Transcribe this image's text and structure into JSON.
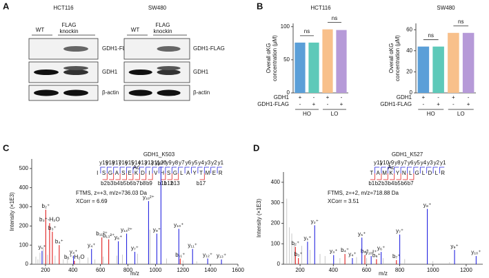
{
  "panel_labels": [
    "A",
    "B",
    "C",
    "D"
  ],
  "blots": [
    {
      "title": "HCT116",
      "lanes": [
        "WT",
        "FLAG",
        "knockin"
      ],
      "rows": [
        "GDH1-FLAG",
        "GDH1",
        "β-actin"
      ]
    },
    {
      "title": "SW480",
      "lanes": [
        "WT",
        "FLAG",
        "knockin"
      ],
      "rows": [
        "GDH1-FLAG",
        "GDH1",
        "β-actin"
      ]
    }
  ],
  "chart_data": [
    {
      "type": "bar",
      "title": "HCT116",
      "y_label": [
        "Overall αKG",
        "concentration (μM)"
      ],
      "values": [
        76,
        76,
        96,
        95
      ],
      "colors": [
        "#5b9fd8",
        "#5ec9b9",
        "#f8c08b",
        "#b69ad8"
      ],
      "ylim": [
        0,
        105
      ],
      "yticks": [
        0,
        50,
        100
      ],
      "annotations": [
        "ns",
        "ns"
      ],
      "conditions": [
        {
          "label": "GDH1",
          "marks": [
            "+",
            "-",
            "+",
            "-"
          ]
        },
        {
          "label": "GDH1-FLAG",
          "marks": [
            "-",
            "+",
            "-",
            "+"
          ]
        }
      ],
      "groups": [
        "HO",
        "LO"
      ]
    },
    {
      "type": "bar",
      "title": "SW480",
      "y_label": [
        "Overall αKG",
        "concentration (μM)"
      ],
      "values": [
        44,
        44,
        57,
        57
      ],
      "colors": [
        "#5b9fd8",
        "#5ec9b9",
        "#f8c08b",
        "#b69ad8"
      ],
      "ylim": [
        0,
        66
      ],
      "yticks": [
        0,
        20,
        40,
        60
      ],
      "annotations": [
        "ns",
        "ns"
      ],
      "conditions": [
        {
          "label": "GDH1",
          "marks": [
            "+",
            "-",
            "+",
            "-"
          ]
        },
        {
          "label": "GDH1-FLAG",
          "marks": [
            "-",
            "+",
            "-",
            "+"
          ]
        }
      ],
      "groups": [
        "HO",
        "LO"
      ]
    },
    {
      "type": "spectrum",
      "title": "GDH1_K503",
      "x_label": "m/z",
      "y_label": "Intensity (×1E3)",
      "annotations": [
        "FTMS, z=+3, m/z=736.03 Da",
        "XCorr = 6.69"
      ],
      "sequence": [
        "I",
        "S",
        "G",
        "A",
        "S",
        "E",
        "K",
        "D",
        "I",
        "V",
        "H",
        "S",
        "G",
        "L",
        "A",
        "Y",
        "T",
        "M",
        "E",
        "R"
      ],
      "modification": "Ac",
      "y_ions": [
        null,
        "y19",
        "y18",
        "y17",
        "y16",
        "y15",
        "y14",
        "y13",
        "y12",
        "y11",
        "y10",
        "y9",
        "y8",
        "y7",
        "y6",
        "y5",
        "y4",
        "y3",
        "y2",
        "y1"
      ],
      "b_ions": [
        null,
        "b2",
        "b3",
        "b4",
        "b5",
        "b6",
        "b7",
        "b8",
        "b9",
        null,
        "b11",
        "b12",
        "b13",
        null,
        null,
        null,
        "b17",
        null,
        null,
        null
      ],
      "xlim": [
        100,
        1600
      ],
      "xticks": [
        200,
        400,
        600,
        800,
        1000,
        1200,
        1400,
        1600
      ],
      "ylim": [
        0,
        550
      ],
      "yticks": [
        0,
        100,
        200,
        300,
        400,
        500
      ],
      "peaks": [
        {
          "mz": 130,
          "intensity": 40,
          "color": "#b0b0b0"
        },
        {
          "mz": 145,
          "intensity": 25,
          "color": "#b0b0b0"
        },
        {
          "mz": 160,
          "intensity": 60,
          "color": "#b0b0b0"
        },
        {
          "mz": 185,
          "intensity": 90,
          "color": "#b0b0b0"
        },
        {
          "mz": 215,
          "intensity": 50,
          "color": "#b0b0b0"
        },
        {
          "mz": 270,
          "intensity": 45,
          "color": "#b0b0b0"
        },
        {
          "mz": 330,
          "intensity": 25,
          "color": "#b0b0b0"
        },
        {
          "mz": 360,
          "intensity": 35,
          "color": "#b0b0b0"
        },
        {
          "mz": 450,
          "intensity": 25,
          "color": "#b0b0b0"
        },
        {
          "mz": 510,
          "intensity": 35,
          "color": "#b0b0b0"
        },
        {
          "mz": 560,
          "intensity": 25,
          "color": "#b0b0b0"
        },
        {
          "mz": 620,
          "intensity": 40,
          "color": "#b0b0b0"
        },
        {
          "mz": 720,
          "intensity": 45,
          "color": "#b0b0b0"
        },
        {
          "mz": 760,
          "intensity": 50,
          "color": "#b0b0b0"
        },
        {
          "mz": 870,
          "intensity": 55,
          "color": "#b0b0b0"
        },
        {
          "mz": 960,
          "intensity": 180,
          "color": "#b0b0b0"
        },
        {
          "mz": 1080,
          "intensity": 30,
          "color": "#b0b0b0"
        },
        {
          "mz": 1200,
          "intensity": 20,
          "color": "#b0b0b0"
        },
        {
          "mz": 1300,
          "intensity": 15,
          "color": "#b0b0b0"
        },
        {
          "mz": 202,
          "intensity": 285,
          "color": "#e01b1b",
          "label": "b₂⁺"
        },
        {
          "mz": 230,
          "intensity": 215,
          "color": "#e01b1b",
          "label": "b₃⁺-H₂O"
        },
        {
          "mz": 250,
          "intensity": 170,
          "color": "#e01b1b",
          "label": "b₃⁺"
        },
        {
          "mz": 300,
          "intensity": 100,
          "color": "#e01b1b",
          "label": "b₄⁺"
        },
        {
          "mz": 410,
          "intensity": 18,
          "color": "#e01b1b",
          "label": "b₅⁺-H₂O"
        },
        {
          "mz": 610,
          "intensity": 140,
          "color": "#e01b1b",
          "label": "b₁₁²⁺"
        },
        {
          "mz": 660,
          "intensity": 130,
          "color": "#e01b1b",
          "label": "b₁₃²⁺"
        },
        {
          "mz": 1180,
          "intensity": 30,
          "color": "#e01b1b",
          "label": "b₁₁⁺"
        },
        {
          "mz": 175,
          "intensity": 70,
          "color": "#2424e0",
          "label": "y₁⁺"
        },
        {
          "mz": 404,
          "intensity": 45,
          "color": "#2424e0",
          "label": "y₃⁺"
        },
        {
          "mz": 535,
          "intensity": 80,
          "color": "#2424e0",
          "label": "y₄⁺"
        },
        {
          "mz": 730,
          "intensity": 120,
          "color": "#2424e0",
          "label": "y₆⁺"
        },
        {
          "mz": 790,
          "intensity": 160,
          "color": "#2424e0",
          "label": "y₁₄²⁺"
        },
        {
          "mz": 850,
          "intensity": 65,
          "color": "#2424e0",
          "label": "y₇⁺"
        },
        {
          "mz": 950,
          "intensity": 330,
          "color": "#2424e0",
          "label": "y₁₀²⁺"
        },
        {
          "mz": 1010,
          "intensity": 160,
          "color": "#2424e0",
          "label": "y₉⁺"
        },
        {
          "mz": 1040,
          "intensity": 510,
          "color": "#2424e0",
          "label": "y₁₉²⁺"
        },
        {
          "mz": 1170,
          "intensity": 185,
          "color": "#2424e0",
          "label": "y₁₀⁺"
        },
        {
          "mz": 1270,
          "intensity": 80,
          "color": "#2424e0",
          "label": "y₁₁⁺"
        },
        {
          "mz": 1380,
          "intensity": 30,
          "color": "#2424e0",
          "label": "y₁₂⁺"
        },
        {
          "mz": 1480,
          "intensity": 25,
          "color": "#2424e0",
          "label": "y₁₃⁺"
        }
      ]
    },
    {
      "type": "spectrum",
      "title": "GDH1_K527",
      "x_label": "m/z",
      "y_label": "Intensity (×1E3)",
      "annotations": [
        "FTMS, z=+2, m/z=718.88 Da",
        "XCorr = 3.51"
      ],
      "sequence": [
        "T",
        "A",
        "M",
        "K",
        "Y",
        "N",
        "L",
        "G",
        "L",
        "D",
        "L",
        "R"
      ],
      "modification": "Ac",
      "y_ions": [
        null,
        "y11",
        "y10",
        "y9",
        "y8",
        "y7",
        "y6",
        "y5",
        "y4",
        "y3",
        "y2",
        "y1"
      ],
      "b_ions": [
        "b1",
        "b2",
        "b3",
        "b4",
        "b5",
        "b6",
        "b7",
        null,
        null,
        null,
        null,
        null
      ],
      "xlim": [
        100,
        1300
      ],
      "xticks": [
        200,
        400,
        600,
        800,
        1000,
        1200
      ],
      "ylim": [
        0,
        450
      ],
      "yticks": [
        0,
        100,
        200,
        300,
        400
      ],
      "peaks": [
        {
          "mz": 120,
          "intensity": 320,
          "color": "#b0b0b0"
        },
        {
          "mz": 135,
          "intensity": 180,
          "color": "#b0b0b0"
        },
        {
          "mz": 150,
          "intensity": 150,
          "color": "#b0b0b0"
        },
        {
          "mz": 165,
          "intensity": 100,
          "color": "#b0b0b0"
        },
        {
          "mz": 210,
          "intensity": 90,
          "color": "#b0b0b0"
        },
        {
          "mz": 260,
          "intensity": 70,
          "color": "#b0b0b0"
        },
        {
          "mz": 320,
          "intensity": 50,
          "color": "#b0b0b0"
        },
        {
          "mz": 350,
          "intensity": 40,
          "color": "#b0b0b0"
        },
        {
          "mz": 440,
          "intensity": 30,
          "color": "#b0b0b0"
        },
        {
          "mz": 540,
          "intensity": 35,
          "color": "#b0b0b0"
        },
        {
          "mz": 600,
          "intensity": 30,
          "color": "#b0b0b0"
        },
        {
          "mz": 700,
          "intensity": 30,
          "color": "#b0b0b0"
        },
        {
          "mz": 830,
          "intensity": 25,
          "color": "#b0b0b0"
        },
        {
          "mz": 1000,
          "intensity": 15,
          "color": "#b0b0b0"
        },
        {
          "mz": 1100,
          "intensity": 10,
          "color": "#b0b0b0"
        },
        {
          "mz": 172,
          "intensity": 85,
          "color": "#e01b1b",
          "label": "b₂⁺"
        },
        {
          "mz": 190,
          "intensity": 30,
          "color": "#e01b1b",
          "label": "b₃⁺"
        },
        {
          "mz": 470,
          "intensity": 50,
          "color": "#e01b1b",
          "label": "b₄⁺"
        },
        {
          "mz": 590,
          "intensity": 45,
          "color": "#e01b1b",
          "label": "b₅⁺"
        },
        {
          "mz": 660,
          "intensity": 25,
          "color": "#e01b1b",
          "label": "b₆⁺"
        },
        {
          "mz": 780,
          "intensity": 20,
          "color": "#e01b1b",
          "label": "b₇⁺"
        },
        {
          "mz": 245,
          "intensity": 110,
          "color": "#2424e0",
          "label": "y₁⁺"
        },
        {
          "mz": 288,
          "intensity": 190,
          "color": "#2424e0",
          "label": "y₂⁺"
        },
        {
          "mz": 402,
          "intensity": 45,
          "color": "#2424e0",
          "label": "y₃⁺"
        },
        {
          "mz": 515,
          "intensity": 30,
          "color": "#2424e0",
          "label": "y₄⁺"
        },
        {
          "mz": 572,
          "intensity": 130,
          "color": "#2424e0",
          "label": "y₅⁺"
        },
        {
          "mz": 628,
          "intensity": 40,
          "color": "#2424e0",
          "label": "y₁₀²⁺"
        },
        {
          "mz": 688,
          "intensity": 60,
          "color": "#2424e0",
          "label": "y₆⁺"
        },
        {
          "mz": 800,
          "intensity": 145,
          "color": "#2424e0",
          "label": "y₇⁺"
        },
        {
          "mz": 966,
          "intensity": 270,
          "color": "#2424e0",
          "label": "y₈⁺"
        },
        {
          "mz": 1130,
          "intensity": 70,
          "color": "#2424e0",
          "label": "y₉⁺"
        },
        {
          "mz": 1260,
          "intensity": 40,
          "color": "#2424e0",
          "label": "y₁₀⁺"
        }
      ]
    }
  ]
}
